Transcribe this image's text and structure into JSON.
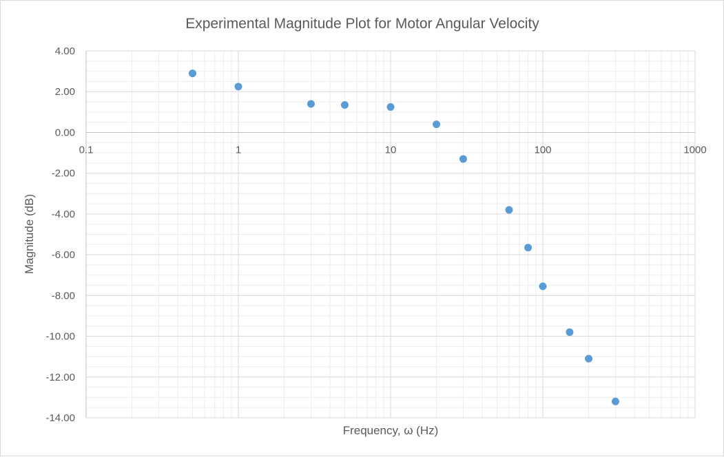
{
  "chart_data": {
    "type": "scatter",
    "title": "Experimental Magnitude Plot for Motor Angular Velocity",
    "xlabel": "Frequency, ω (Hz)",
    "ylabel": "Magnitude (dB)",
    "x_scale": "log",
    "xlim": [
      0.1,
      1000
    ],
    "ylim": [
      -14,
      4
    ],
    "x_ticks": [
      0.1,
      1,
      10,
      100,
      1000
    ],
    "x_tick_labels": [
      "0.1",
      "1",
      "10",
      "100",
      "1000"
    ],
    "y_ticks": [
      4,
      2,
      0,
      -2,
      -4,
      -6,
      -8,
      -10,
      -12,
      -14
    ],
    "y_tick_labels": [
      "4.00",
      "2.00",
      "0.00",
      "-2.00",
      "-4.00",
      "-6.00",
      "-8.00",
      "-10.00",
      "-12.00",
      "-14.00"
    ],
    "grid": true,
    "legend": false,
    "marker_color": "#5b9bd5",
    "series": [
      {
        "x": [
          0.5,
          1,
          3,
          5,
          10,
          20,
          30,
          60,
          80,
          100,
          150,
          200,
          300
        ],
        "y": [
          2.9,
          2.25,
          1.4,
          1.35,
          1.25,
          0.4,
          -1.3,
          -3.8,
          -5.65,
          -7.55,
          -9.8,
          -11.1,
          -13.2
        ]
      }
    ]
  }
}
